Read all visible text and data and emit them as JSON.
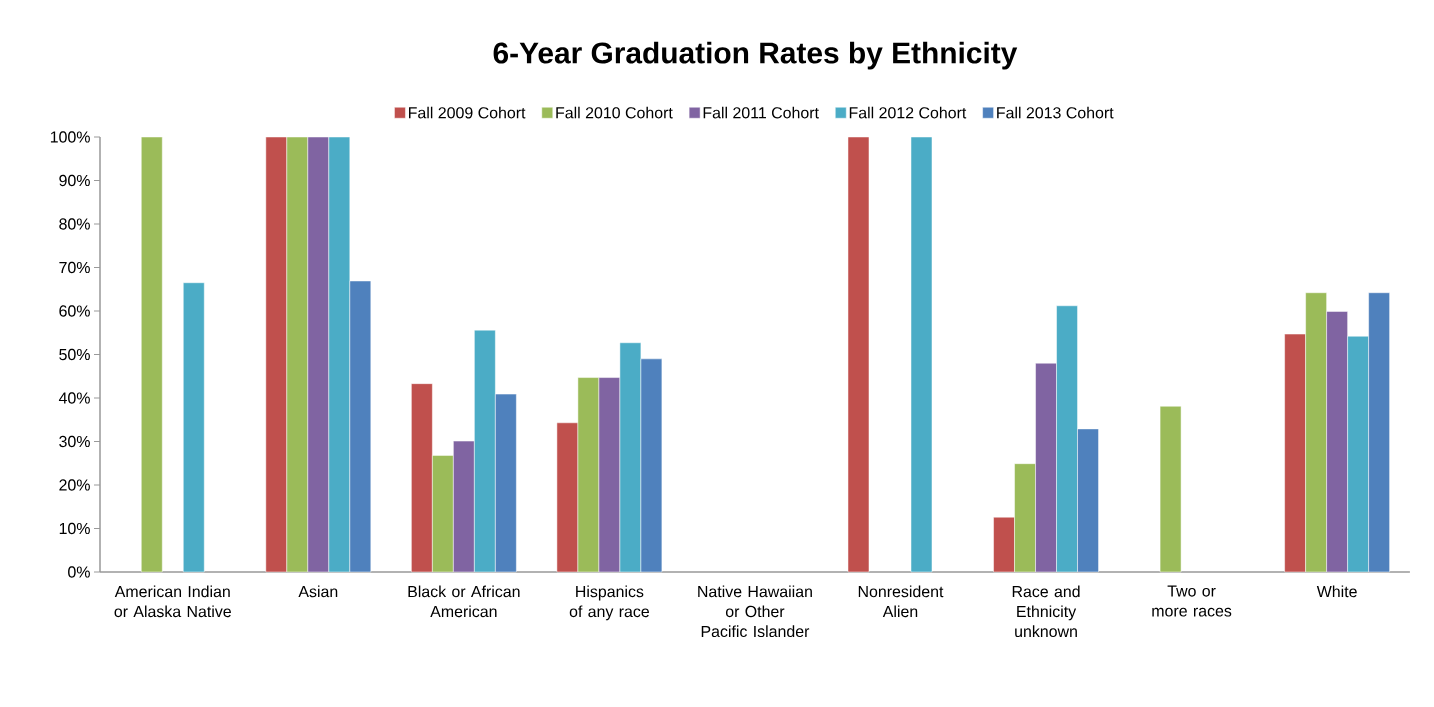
{
  "chart_data": {
    "type": "bar",
    "title": "6-Year Graduation Rates by Ethnicity",
    "categories": [
      "American Indian or Alaska Native",
      "Asian",
      "Black or African American",
      "Hispanics of any race",
      "Native Hawaiian or Other Pacific Islander",
      "Nonresident Alien",
      "Race and Ethnicity unknown",
      "Two or more races",
      "White"
    ],
    "series": [
      {
        "name": "Fall 2009 Cohort",
        "color": "#c0504d",
        "values": [
          null,
          100,
          43.3,
          34.3,
          null,
          100,
          12.6,
          null,
          54.7
        ]
      },
      {
        "name": "Fall 2010 Cohort",
        "color": "#9bbb59",
        "values": [
          100,
          100,
          26.8,
          44.7,
          null,
          null,
          24.9,
          38.1,
          64.2
        ]
      },
      {
        "name": "Fall 2011 Cohort",
        "color": "#8064a2",
        "values": [
          null,
          100,
          30.1,
          44.7,
          null,
          null,
          48.0,
          null,
          59.9
        ]
      },
      {
        "name": "Fall 2012 Cohort",
        "color": "#4bacc6",
        "values": [
          66.5,
          100,
          55.6,
          52.7,
          null,
          100,
          61.2,
          null,
          54.2
        ]
      },
      {
        "name": "Fall 2013 Cohort",
        "color": "#4f81bd",
        "values": [
          null,
          66.9,
          40.9,
          49.0,
          null,
          null,
          32.9,
          null,
          64.2
        ]
      }
    ],
    "ylim": [
      0,
      100
    ],
    "yticks": [
      {
        "value": 0,
        "label": "0%"
      },
      {
        "value": 10,
        "label": "10%"
      },
      {
        "value": 20,
        "label": "20%"
      },
      {
        "value": 30,
        "label": "30%"
      },
      {
        "value": 40,
        "label": "40%"
      },
      {
        "value": 50,
        "label": "50%"
      },
      {
        "value": 60,
        "label": "60%"
      },
      {
        "value": 70,
        "label": "70%"
      },
      {
        "value": 80,
        "label": "80%"
      },
      {
        "value": 90,
        "label": "90%"
      },
      {
        "value": 100,
        "label": "100%"
      }
    ],
    "legend": "top"
  }
}
